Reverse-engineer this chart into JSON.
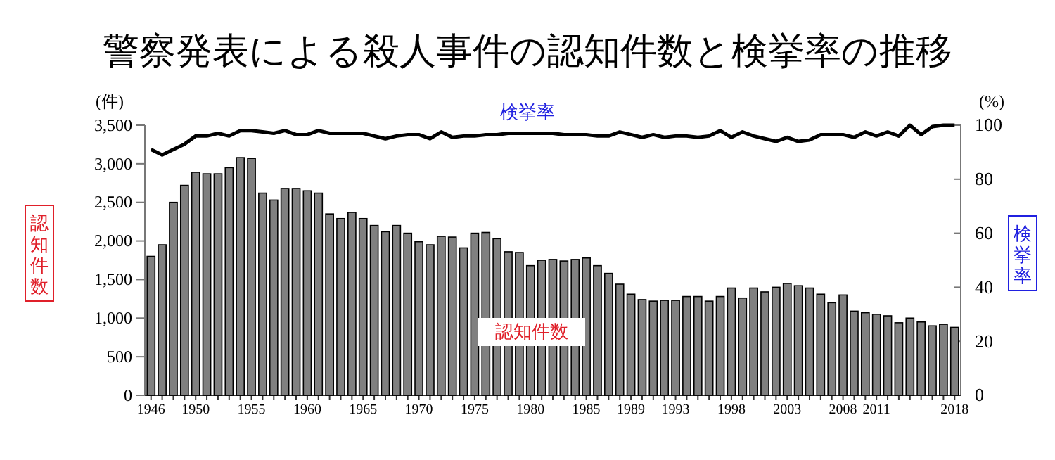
{
  "chart_data": {
    "type": "bar",
    "title": "警察発表による殺人事件の認知件数と検挙率の推移",
    "ylabel": "認知件数",
    "y2label": "検挙率",
    "annotations": [
      "(件)",
      "(%)"
    ],
    "categories": [
      "1946",
      null,
      null,
      null,
      "1950",
      null,
      null,
      null,
      null,
      "1955",
      null,
      null,
      null,
      null,
      "1960",
      null,
      null,
      null,
      null,
      "1965",
      null,
      null,
      null,
      null,
      "1970",
      null,
      null,
      null,
      null,
      "1975",
      null,
      null,
      null,
      null,
      "1980",
      null,
      null,
      null,
      null,
      "1985",
      null,
      null,
      null,
      "1989",
      null,
      null,
      null,
      "1993",
      null,
      null,
      null,
      null,
      "1998",
      null,
      null,
      null,
      null,
      "2003",
      null,
      null,
      null,
      null,
      "2008",
      null,
      null,
      "2011",
      null,
      null,
      null,
      null,
      null,
      null,
      "2018"
    ],
    "ylim": [
      0,
      3500
    ],
    "yticks": [
      0,
      {
        "value": 500,
        "label": "500"
      },
      {
        "value": 1000,
        "label": "1,000"
      },
      {
        "value": 1500,
        "label": "1,500"
      },
      {
        "value": 2000,
        "label": "2,000"
      },
      {
        "value": 2500,
        "label": "2,500"
      },
      {
        "value": 3000,
        "label": "3,000"
      },
      {
        "value": 3500,
        "label": "3,500"
      }
    ],
    "y2lim": [
      0,
      100
    ],
    "y2ticks": [
      0,
      20,
      40,
      60,
      80,
      100
    ],
    "grid": false,
    "series": [
      {
        "name": "認知件数",
        "color": "#808080",
        "values": [
          1800,
          1950,
          2500,
          2720,
          2890,
          2870,
          2870,
          2950,
          3080,
          3070,
          2620,
          2530,
          2680,
          2680,
          2650,
          2620,
          2350,
          2290,
          2370,
          2290,
          2200,
          2120,
          2200,
          2100,
          1990,
          1950,
          2060,
          2050,
          1910,
          2100,
          2110,
          2030,
          1860,
          1850,
          1680,
          1750,
          1760,
          1740,
          1760,
          1780,
          1680,
          1580,
          1440,
          1310,
          1240,
          1220,
          1230,
          1230,
          1280,
          1280,
          1220,
          1280,
          1390,
          1260,
          1390,
          1340,
          1400,
          1450,
          1420,
          1390,
          1310,
          1200,
          1300,
          1090,
          1070,
          1050,
          1030,
          940,
          1000,
          950,
          900,
          920,
          880
        ]
      },
      {
        "name": "検挙率",
        "type": "line",
        "axis": "y2",
        "color": "#000000",
        "marker": "none",
        "line_style": "solid",
        "values": [
          91,
          89,
          91,
          93,
          96,
          96,
          97,
          96,
          98,
          98,
          97.5,
          97,
          98,
          96.5,
          96.5,
          98,
          97,
          97,
          97,
          97,
          96,
          95,
          96,
          96.5,
          96.5,
          95,
          97.5,
          95.5,
          96,
          96,
          96.5,
          96.5,
          97,
          97,
          97,
          97,
          97,
          96.5,
          96.5,
          96.5,
          96,
          96,
          97.5,
          96.5,
          95.5,
          96.5,
          95.5,
          96,
          96,
          95.5,
          96,
          98,
          95.5,
          97.5,
          96,
          95,
          94,
          95.5,
          94,
          94.5,
          96.5,
          96.5,
          96.5,
          95.5,
          97.5,
          96,
          97.5,
          96,
          100,
          96.5,
          99.5,
          100,
          100
        ]
      }
    ]
  }
}
